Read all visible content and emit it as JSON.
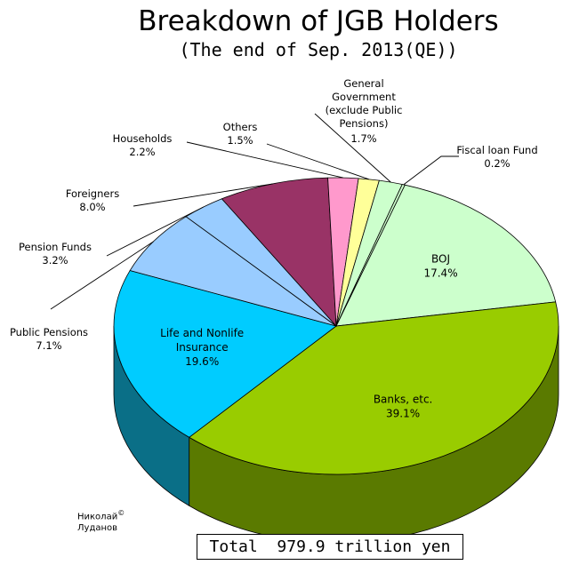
{
  "chart_data": {
    "type": "pie",
    "title": "Breakdown of JGB Holders",
    "subtitle": "(The end of Sep. 2013(QE))",
    "unit": "%",
    "slices": [
      {
        "label": "BOJ",
        "value": 17.4,
        "value_text": "17.4%",
        "color": "#ccffcc",
        "side": "#8fb38f",
        "label_pos": "inside"
      },
      {
        "label": "Banks, etc.",
        "value": 39.1,
        "value_text": "39.1%",
        "color": "#99cc00",
        "side": "#5a7a00",
        "label_pos": "inside"
      },
      {
        "label": "Life and Nonlife Insurance",
        "label_lines": [
          "Life and Nonlife",
          "Insurance"
        ],
        "value": 19.6,
        "value_text": "19.6%",
        "color": "#00ccff",
        "side": "#0a6f87",
        "label_pos": "inside"
      },
      {
        "label": "Public Pensions",
        "value": 7.1,
        "value_text": "7.1%",
        "color": "#99ccff",
        "side": "#5b84ad",
        "label_pos": "outside"
      },
      {
        "label": "Pension Funds",
        "value": 3.2,
        "value_text": "3.2%",
        "color": "#99ccff",
        "side": "#5b84ad",
        "label_pos": "outside"
      },
      {
        "label": "Foreigners",
        "value": 8.0,
        "value_text": "8.0%",
        "color": "#993366",
        "side": "#5e1f3f",
        "label_pos": "outside"
      },
      {
        "label": "Households",
        "value": 2.2,
        "value_text": "2.2%",
        "color": "#ff99cc",
        "side": "#b36b8f",
        "label_pos": "outside"
      },
      {
        "label": "Others",
        "value": 1.5,
        "value_text": "1.5%",
        "color": "#ffff99",
        "side": "#b3b36b",
        "label_pos": "outside"
      },
      {
        "label": "General Government (exclude Public Pensions)",
        "label_lines": [
          "General",
          "Government",
          "(exclude Public",
          "Pensions)"
        ],
        "value": 1.7,
        "value_text": "1.7%",
        "color": "#ccffcc",
        "side": "#8fb38f",
        "label_pos": "outside"
      },
      {
        "label": "Fiscal loan Fund",
        "value": 0.2,
        "value_text": "0.2%",
        "color": "#ccffcc",
        "side": "#8fb38f",
        "label_pos": "outside"
      }
    ],
    "total": "Total  979.9 trillion yen",
    "legend": "none",
    "style": "3d-pie"
  },
  "author": {
    "line1": "Николай",
    "mark": "©",
    "line2": "Луданов"
  }
}
